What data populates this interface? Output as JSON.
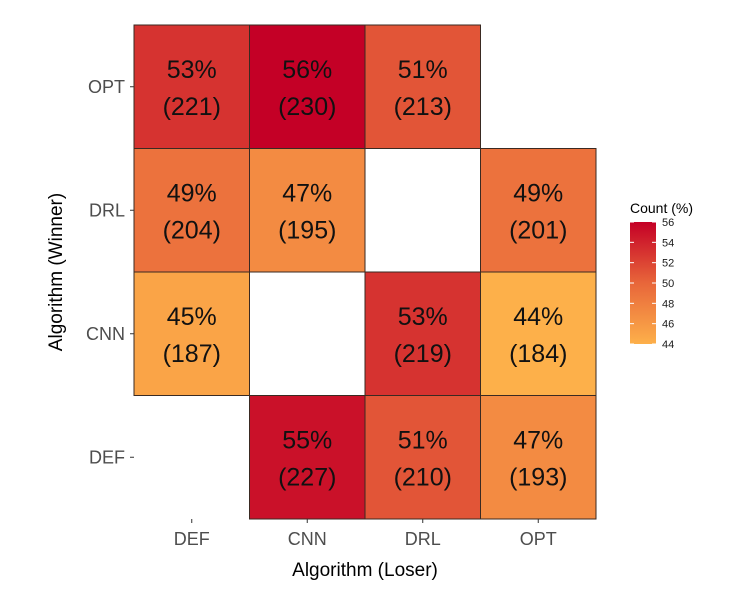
{
  "chart_data": {
    "type": "heatmap",
    "xlabel": "Algorithm (Loser)",
    "ylabel": "Algorithm (Winner)",
    "x_categories": [
      "DEF",
      "CNN",
      "DRL",
      "OPT"
    ],
    "y_categories": [
      "DEF",
      "CNN",
      "DRL",
      "OPT"
    ],
    "cells": [
      {
        "x": "DEF",
        "y": "OPT",
        "percent_label": "53%",
        "count_label": "(221)",
        "percent": 53,
        "count": 221
      },
      {
        "x": "CNN",
        "y": "OPT",
        "percent_label": "56%",
        "count_label": "(230)",
        "percent": 56,
        "count": 230
      },
      {
        "x": "DRL",
        "y": "OPT",
        "percent_label": "51%",
        "count_label": "(213)",
        "percent": 51,
        "count": 213
      },
      {
        "x": "DEF",
        "y": "DRL",
        "percent_label": "49%",
        "count_label": "(204)",
        "percent": 49,
        "count": 204
      },
      {
        "x": "CNN",
        "y": "DRL",
        "percent_label": "47%",
        "count_label": "(195)",
        "percent": 47,
        "count": 195
      },
      {
        "x": "OPT",
        "y": "DRL",
        "percent_label": "49%",
        "count_label": "(201)",
        "percent": 49,
        "count": 201
      },
      {
        "x": "DEF",
        "y": "CNN",
        "percent_label": "45%",
        "count_label": "(187)",
        "percent": 45,
        "count": 187
      },
      {
        "x": "DRL",
        "y": "CNN",
        "percent_label": "53%",
        "count_label": "(219)",
        "percent": 53,
        "count": 219
      },
      {
        "x": "OPT",
        "y": "CNN",
        "percent_label": "44%",
        "count_label": "(184)",
        "percent": 44,
        "count": 184
      },
      {
        "x": "CNN",
        "y": "DEF",
        "percent_label": "55%",
        "count_label": "(227)",
        "percent": 55,
        "count": 227
      },
      {
        "x": "DRL",
        "y": "DEF",
        "percent_label": "51%",
        "count_label": "(210)",
        "percent": 51,
        "count": 210
      },
      {
        "x": "OPT",
        "y": "DEF",
        "percent_label": "47%",
        "count_label": "(193)",
        "percent": 47,
        "count": 193
      }
    ],
    "legend": {
      "title": "Count (%)",
      "min": 44,
      "max": 56,
      "ticks": [
        "56",
        "54",
        "52",
        "50",
        "48",
        "46",
        "44"
      ],
      "tick_values": [
        56,
        54,
        52,
        50,
        48,
        46,
        44
      ],
      "placement": "right"
    },
    "colors": {
      "low": "#fdb04a",
      "mid": "#e8663a",
      "high": "#c40026",
      "cell_border": "#3a2a22",
      "axis_text": "#4d4d4d",
      "title_text": "#000000"
    },
    "grid": false
  }
}
